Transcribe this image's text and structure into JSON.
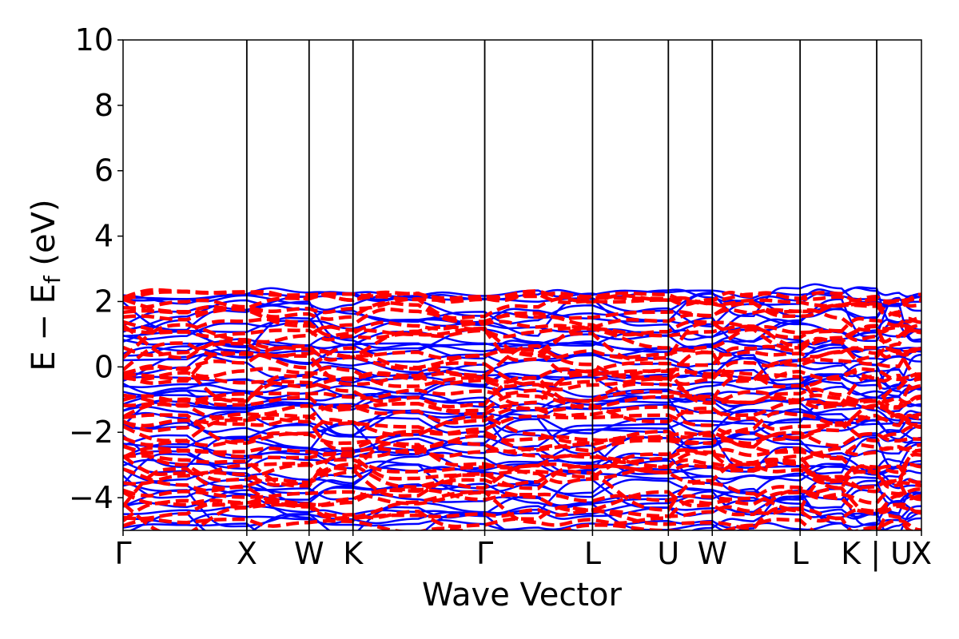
{
  "chart_data": {
    "type": "line",
    "title": "",
    "xlabel": "Wave Vector",
    "ylabel": {
      "prefix": "E − E",
      "subscript": "f",
      "suffix": " (eV)"
    },
    "ylim": [
      -5,
      10
    ],
    "yticks": [
      {
        "value": -4,
        "label": "−4"
      },
      {
        "value": -2,
        "label": "−2"
      },
      {
        "value": 0,
        "label": "0"
      },
      {
        "value": 2,
        "label": "2"
      },
      {
        "value": 4,
        "label": "4"
      },
      {
        "value": 6,
        "label": "6"
      },
      {
        "value": 8,
        "label": "8"
      },
      {
        "value": 10,
        "label": "10"
      }
    ],
    "xlim": [
      0,
      1
    ],
    "kpath": [
      {
        "label": "Γ",
        "position": 0.0
      },
      {
        "label": "X",
        "position": 0.155
      },
      {
        "label": "W",
        "position": 0.233
      },
      {
        "label": "K",
        "position": 0.288
      },
      {
        "label": "Γ",
        "position": 0.453
      },
      {
        "label": "L",
        "position": 0.588
      },
      {
        "label": "U",
        "position": 0.683
      },
      {
        "label": "W",
        "position": 0.738
      },
      {
        "label": "L",
        "position": 0.848
      },
      {
        "label": "K | U",
        "position": 0.944
      },
      {
        "label": "X",
        "position": 1.0
      }
    ],
    "grid": false,
    "legend": "none",
    "band_window": [
      -5,
      2.4
    ],
    "series": [
      {
        "style": "solid",
        "color": "#0000ff",
        "band_count": 46
      },
      {
        "style": "dashed",
        "color": "#ff0000",
        "band_count": 40
      }
    ]
  }
}
